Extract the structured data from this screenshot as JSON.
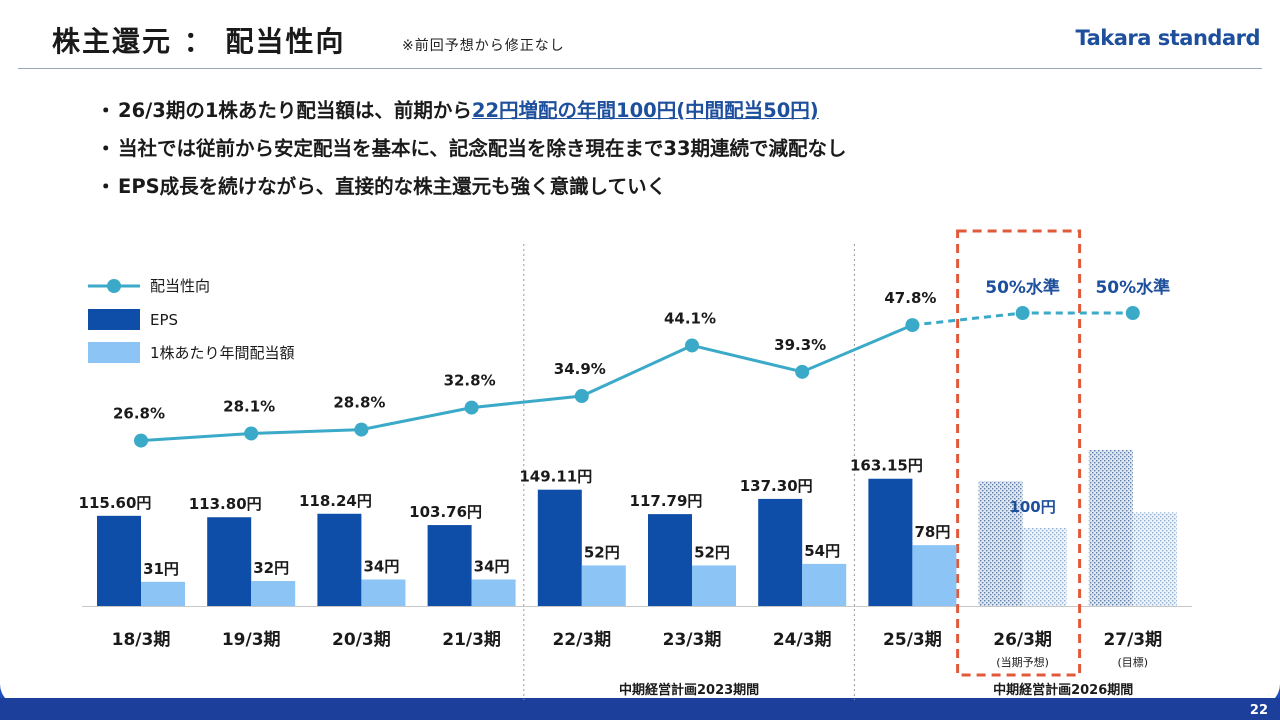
{
  "header": {
    "title": "株主還元 ： 配当性向",
    "note": "※前回予想から修正なし",
    "logo": "Takara standard"
  },
  "bullets": [
    {
      "prefix": "26/3期の1株あたり配当額は、前期から",
      "highlight": "22円増配の年間100円(中間配当50円)",
      "suffix": ""
    },
    {
      "prefix": "当社では従前から安定配当を基本に、記念配当を除き現在まで33期連続で減配なし",
      "highlight": "",
      "suffix": ""
    },
    {
      "prefix": "EPS成長を続けながら、直接的な株主還元も強く意識していく",
      "highlight": "",
      "suffix": ""
    }
  ],
  "bullet_marker": "・",
  "page_number": "22",
  "colors": {
    "eps": "#0f4ea8",
    "dividend": "#8cc4f5",
    "payout_line": "#3aaac8",
    "highlight_box": "#e05a3a",
    "accent_text": "#1d4f9c"
  },
  "chart_data": {
    "type": "bar",
    "categories": [
      "18/3期",
      "19/3期",
      "20/3期",
      "21/3期",
      "22/3期",
      "23/3期",
      "24/3期",
      "25/3期",
      "26/3期",
      "27/3期"
    ],
    "category_sublabels": [
      "",
      "",
      "",
      "",
      "",
      "",
      "",
      "",
      "(当期予想)",
      "(目標)"
    ],
    "series": [
      {
        "name": "EPS",
        "values": [
          115.6,
          113.8,
          118.24,
          103.76,
          149.11,
          117.79,
          137.3,
          163.15,
          160,
          200
        ],
        "labels": [
          "115.60円",
          "113.80円",
          "118.24円",
          "103.76円",
          "149.11円",
          "117.79円",
          "137.30円",
          "163.15円",
          "",
          ""
        ],
        "hatched_from_index": 8
      },
      {
        "name": "1株あたり年間配当額",
        "values": [
          31,
          32,
          34,
          34,
          52,
          52,
          54,
          78,
          100,
          120
        ],
        "labels": [
          "31円",
          "32円",
          "34円",
          "34円",
          "52円",
          "52円",
          "54円",
          "78円",
          "100円",
          ""
        ],
        "hatched_from_index": 8
      },
      {
        "name": "配当性向",
        "type": "line",
        "values": [
          26.8,
          28.1,
          28.8,
          32.8,
          34.9,
          44.1,
          39.3,
          47.8,
          50,
          50
        ],
        "labels": [
          "26.8%",
          "28.1%",
          "28.8%",
          "32.8%",
          "34.9%",
          "44.1%",
          "39.3%",
          "47.8%",
          "50%水準",
          "50%水準"
        ],
        "dashed_from_index": 7
      }
    ],
    "period_labels": [
      "中期経営計画2023期間",
      "中期経営計画2026期間"
    ],
    "highlight_category": "26/3期",
    "legend": "top-left"
  }
}
